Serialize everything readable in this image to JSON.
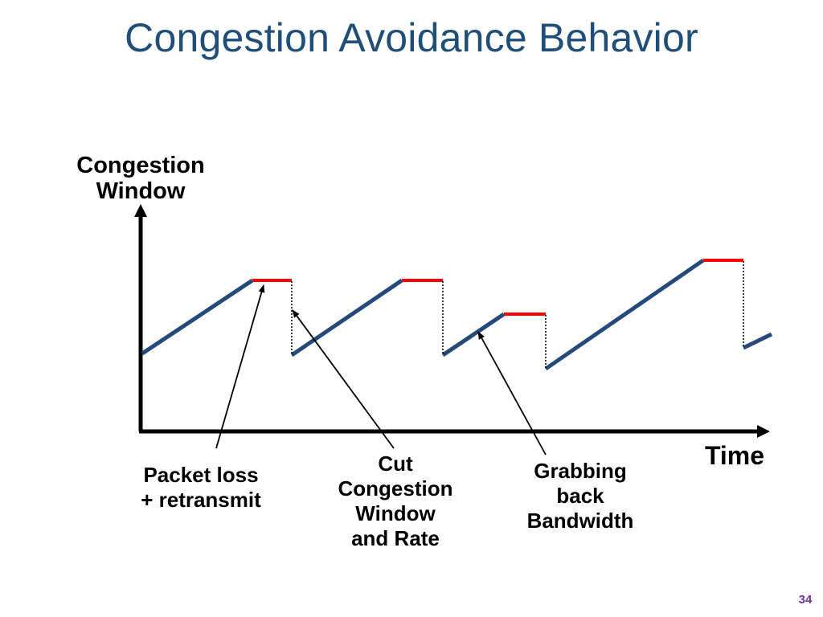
{
  "slide": {
    "title": "Congestion Avoidance Behavior",
    "page_number": "34"
  },
  "diagram": {
    "y_axis_label_line1": "Congestion",
    "y_axis_label_line2": "Window",
    "x_axis_label": "Time",
    "colors": {
      "axis": "#000000",
      "window_line": "#24497a",
      "loss_plateau": "#ff0000",
      "drop_line": "#000000",
      "annotation_arrow": "#000000",
      "title": "#1f4e79"
    },
    "annotations": {
      "packet_loss": {
        "line1": "Packet loss",
        "line2": "+ retransmit"
      },
      "cut_window": {
        "line1": "Cut",
        "line2": "Congestion",
        "line3": "Window",
        "line4": "and Rate"
      },
      "grabbing_back": {
        "line1": "Grabbing",
        "line2": "back",
        "line3": "Bandwidth"
      }
    }
  }
}
